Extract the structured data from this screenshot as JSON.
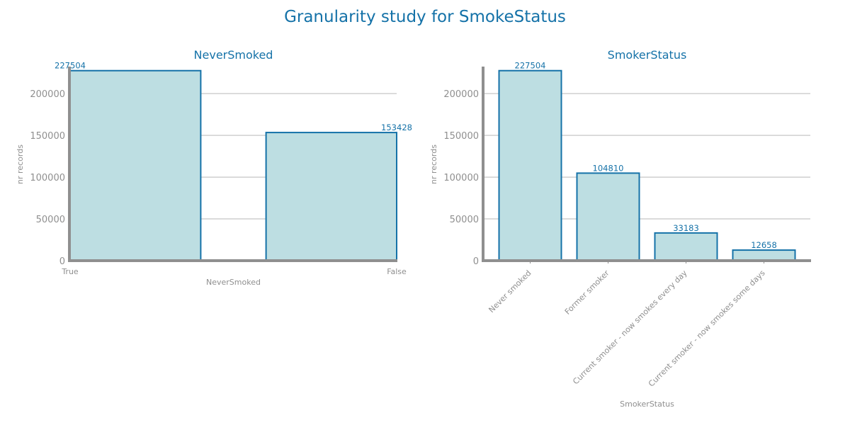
{
  "figure_title": "Granularity study for SmokeStatus",
  "colors": {
    "bar_fill": "#bddee2",
    "bar_edge": "#1572a8",
    "title": "#1572a8",
    "axis": "#8f8f8f",
    "grid": "#cfcfcf"
  },
  "chart_data": [
    {
      "type": "bar",
      "title": "NeverSmoked",
      "xlabel": "NeverSmoked",
      "ylabel": "nr records",
      "categories": [
        "True",
        "False"
      ],
      "values": [
        227504,
        153428
      ],
      "value_labels": [
        "227504",
        "153428"
      ],
      "ylim": [
        0,
        240000
      ],
      "yticks": [
        0,
        50000,
        100000,
        150000,
        200000
      ],
      "ytick_labels": [
        "0",
        "50000",
        "100000",
        "150000",
        "200000"
      ],
      "grid": "horizontal",
      "x_tick_rotation": "none"
    },
    {
      "type": "bar",
      "title": "SmokerStatus",
      "xlabel": "SmokerStatus",
      "ylabel": "nr records",
      "categories": [
        "Never smoked",
        "Former smoker",
        "Current smoker - now smokes every day",
        "Current smoker - now smokes some days"
      ],
      "values": [
        227504,
        104810,
        33183,
        12658
      ],
      "value_labels": [
        "227504",
        "104810",
        "33183",
        "12658"
      ],
      "ylim": [
        0,
        240000
      ],
      "yticks": [
        0,
        50000,
        100000,
        150000,
        200000
      ],
      "ytick_labels": [
        "0",
        "50000",
        "100000",
        "150000",
        "200000"
      ],
      "grid": "horizontal",
      "x_tick_rotation": "45 degrees"
    }
  ]
}
